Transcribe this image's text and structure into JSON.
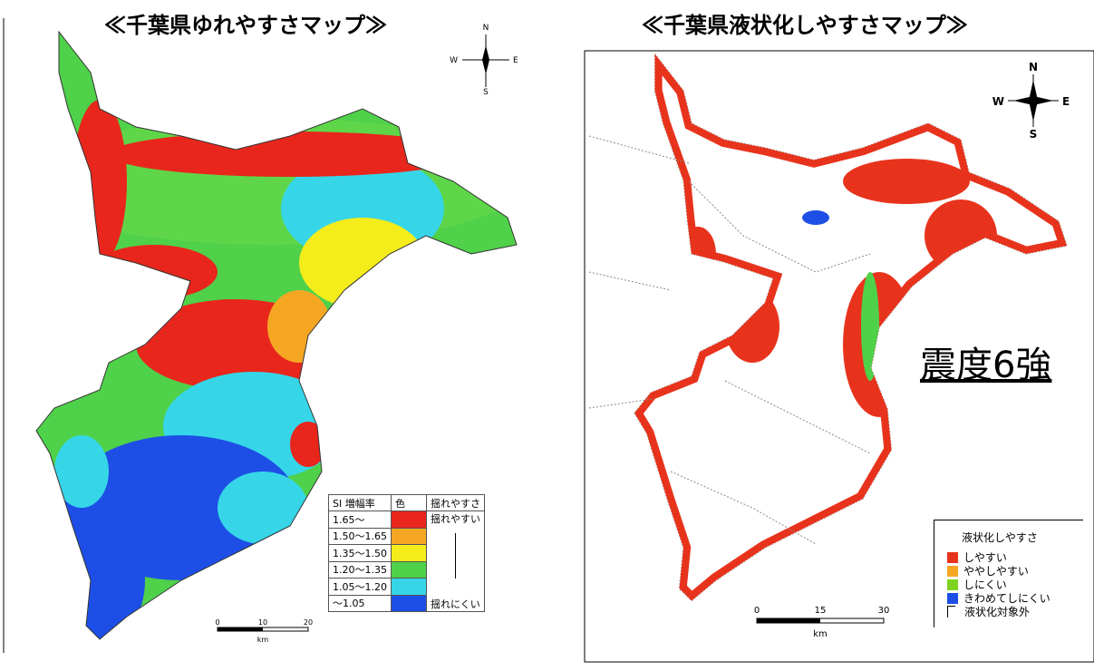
{
  "left_map": {
    "title": "≪千葉県ゆれやすさマップ≫",
    "compass": {
      "n": "N",
      "w": "W",
      "e": "E",
      "s": "S"
    },
    "legend": {
      "headers": [
        "SI 増幅率",
        "色",
        "揺れやすさ"
      ],
      "rows": [
        {
          "range": "1.65～",
          "color": "#e8261c",
          "label": "揺れやすい"
        },
        {
          "range": "1.50～1.65",
          "color": "#f5a623",
          "label": null
        },
        {
          "range": "1.35～1.50",
          "color": "#f5ec1c",
          "label": null
        },
        {
          "range": "1.20～1.35",
          "color": "#4fd14a",
          "label": null
        },
        {
          "range": "1.05～1.20",
          "color": "#36d6e8",
          "label": null
        },
        {
          "range": "～1.05",
          "color": "#1d4fe6",
          "label": "揺れにくい"
        }
      ]
    },
    "scale": {
      "ticks": [
        "0",
        "10",
        "20"
      ],
      "unit": "km"
    }
  },
  "right_map": {
    "title": "≪千葉県液状化しやすさマップ≫",
    "compass": {
      "n": "N",
      "w": "W",
      "e": "E",
      "s": "S"
    },
    "intensity": "震度6強",
    "legend": {
      "title": "液状化しやすさ",
      "items": [
        {
          "label": "しやすい",
          "color": "#e8331c"
        },
        {
          "label": "ややしやすい",
          "color": "#f5a623"
        },
        {
          "label": "しにくい",
          "color": "#7ed321"
        },
        {
          "label": "きわめてしにくい",
          "color": "#1d4fe6"
        },
        {
          "label": "液状化対象外",
          "color": null
        }
      ]
    },
    "scale": {
      "ticks": [
        "0",
        "15",
        "30"
      ],
      "unit": "km"
    }
  }
}
